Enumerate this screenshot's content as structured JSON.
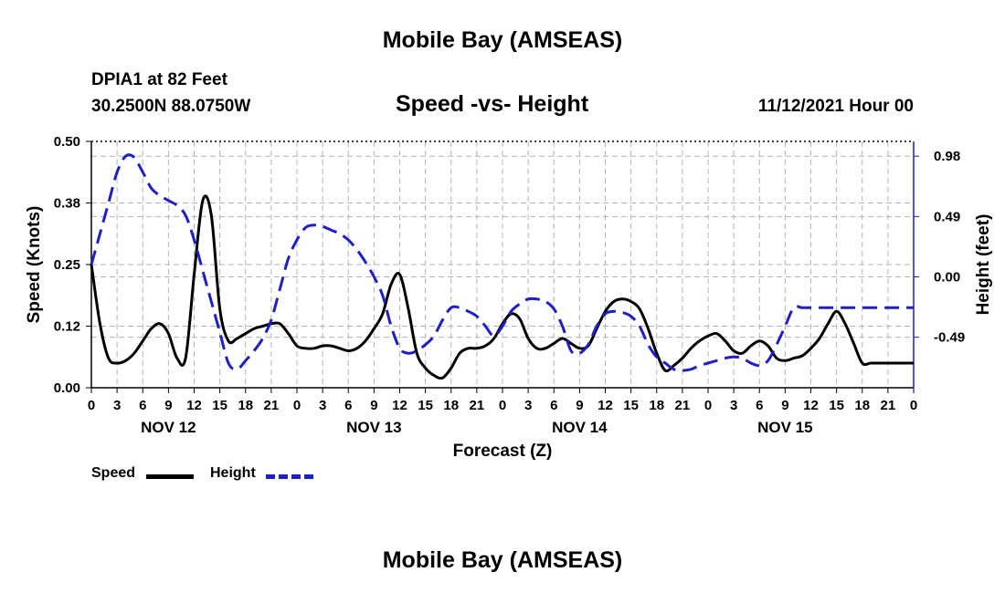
{
  "header": {
    "title": "Mobile Bay (AMSEAS)",
    "station": "DPIA1 at 82 Feet",
    "coords": "30.2500N  88.0750W",
    "chart_title": "Speed -vs- Height",
    "datetime": "11/12/2021 Hour 00"
  },
  "footer": {
    "title": "Mobile Bay (AMSEAS)"
  },
  "legend": {
    "speed_label": "Speed",
    "height_label": "Height"
  },
  "colors": {
    "speed": "#000000",
    "height": "#1f1fc8",
    "grid": "#b4b4b4"
  },
  "chart_data": {
    "type": "line",
    "title": "Speed -vs- Height",
    "xlabel": "Forecast (Z)",
    "ylabel_left": "Speed (Knots)",
    "ylabel_right": "Height (feet)",
    "xlim": [
      0,
      96
    ],
    "ylim_left": [
      0,
      0.5
    ],
    "ylim_right": [
      -0.9,
      1.1
    ],
    "x_tick_labels": [
      "0",
      "3",
      "6",
      "9",
      "12",
      "15",
      "18",
      "21",
      "0",
      "3",
      "6",
      "9",
      "12",
      "15",
      "18",
      "21",
      "0",
      "3",
      "6",
      "9",
      "12",
      "15",
      "18",
      "21",
      "0",
      "3",
      "6",
      "9",
      "12",
      "15",
      "18",
      "21",
      "0"
    ],
    "date_labels": [
      {
        "label": "NOV 12",
        "x": 9
      },
      {
        "label": "NOV 13",
        "x": 33
      },
      {
        "label": "NOV 14",
        "x": 57
      },
      {
        "label": "NOV 15",
        "x": 81
      }
    ],
    "left_ticks": [
      {
        "value": 0.0,
        "label": "0.00"
      },
      {
        "value": 0.125,
        "label": "0.12"
      },
      {
        "value": 0.25,
        "label": "0.25"
      },
      {
        "value": 0.375,
        "label": "0.38"
      },
      {
        "value": 0.5,
        "label": "0.50"
      }
    ],
    "right_ticks": [
      {
        "value": 0.98,
        "label": "0.98"
      },
      {
        "value": 0.49,
        "label": "0.49"
      },
      {
        "value": 0.0,
        "label": "0.00"
      },
      {
        "value": -0.49,
        "label": "-0.49"
      }
    ],
    "grid": true,
    "series": [
      {
        "name": "Speed",
        "axis": "left",
        "style": "solid",
        "x": [
          0,
          1,
          2,
          3,
          4,
          5,
          6,
          7,
          8,
          9,
          10,
          11,
          12,
          13,
          14,
          15,
          16,
          17,
          18,
          19,
          20,
          21,
          22,
          23,
          24,
          25,
          26,
          27,
          28,
          29,
          30,
          31,
          32,
          33,
          34,
          35,
          36,
          37,
          38,
          39,
          40,
          41,
          42,
          43,
          44,
          45,
          46,
          47,
          48,
          49,
          50,
          51,
          52,
          53,
          54,
          55,
          56,
          57,
          58,
          59,
          60,
          61,
          62,
          63,
          64,
          65,
          66,
          67,
          68,
          69,
          70,
          71,
          72,
          73,
          74,
          75,
          76,
          77,
          78,
          79,
          80,
          81,
          82,
          83,
          84,
          85,
          86,
          87,
          88,
          89,
          90,
          91,
          92,
          93,
          94,
          95,
          96
        ],
        "values": [
          0.25,
          0.13,
          0.06,
          0.05,
          0.055,
          0.07,
          0.095,
          0.12,
          0.13,
          0.11,
          0.06,
          0.06,
          0.23,
          0.38,
          0.35,
          0.16,
          0.095,
          0.1,
          0.11,
          0.12,
          0.125,
          0.13,
          0.13,
          0.11,
          0.085,
          0.08,
          0.08,
          0.085,
          0.085,
          0.08,
          0.075,
          0.08,
          0.095,
          0.12,
          0.15,
          0.21,
          0.23,
          0.16,
          0.07,
          0.04,
          0.025,
          0.02,
          0.04,
          0.07,
          0.08,
          0.08,
          0.085,
          0.1,
          0.13,
          0.15,
          0.14,
          0.1,
          0.08,
          0.08,
          0.09,
          0.1,
          0.09,
          0.08,
          0.085,
          0.12,
          0.155,
          0.175,
          0.18,
          0.175,
          0.16,
          0.12,
          0.07,
          0.035,
          0.045,
          0.06,
          0.08,
          0.095,
          0.105,
          0.11,
          0.095,
          0.075,
          0.07,
          0.085,
          0.095,
          0.085,
          0.06,
          0.055,
          0.06,
          0.065,
          0.08,
          0.1,
          0.13,
          0.155,
          0.13,
          0.09,
          0.05,
          0.05,
          0.05,
          0.05,
          0.05,
          0.05,
          0.05
        ]
      },
      {
        "name": "Height",
        "axis": "right",
        "style": "dashed",
        "x": [
          0,
          1,
          2,
          3,
          4,
          5,
          6,
          7,
          8,
          9,
          10,
          11,
          12,
          13,
          14,
          15,
          16,
          17,
          18,
          19,
          20,
          21,
          22,
          23,
          24,
          25,
          26,
          27,
          28,
          29,
          30,
          31,
          32,
          33,
          34,
          35,
          36,
          37,
          38,
          39,
          40,
          41,
          42,
          43,
          44,
          45,
          46,
          47,
          48,
          49,
          50,
          51,
          52,
          53,
          54,
          55,
          56,
          57,
          58,
          59,
          60,
          61,
          62,
          63,
          64,
          65,
          66,
          67,
          68,
          69,
          70,
          71,
          72,
          73,
          74,
          75,
          76,
          77,
          78,
          79,
          80,
          81,
          82,
          83,
          84,
          85,
          86,
          87,
          88,
          89,
          90,
          91,
          92,
          93,
          94,
          95,
          96
        ],
        "values": [
          0.1,
          0.35,
          0.6,
          0.85,
          0.98,
          0.97,
          0.85,
          0.72,
          0.66,
          0.62,
          0.58,
          0.5,
          0.3,
          0.05,
          -0.2,
          -0.45,
          -0.7,
          -0.75,
          -0.68,
          -0.6,
          -0.5,
          -0.35,
          -0.1,
          0.15,
          0.3,
          0.4,
          0.42,
          0.41,
          0.38,
          0.35,
          0.3,
          0.22,
          0.12,
          0.0,
          -0.15,
          -0.4,
          -0.58,
          -0.62,
          -0.6,
          -0.55,
          -0.48,
          -0.35,
          -0.25,
          -0.25,
          -0.28,
          -0.32,
          -0.4,
          -0.48,
          -0.4,
          -0.28,
          -0.22,
          -0.18,
          -0.18,
          -0.2,
          -0.26,
          -0.4,
          -0.6,
          -0.62,
          -0.55,
          -0.4,
          -0.3,
          -0.28,
          -0.29,
          -0.32,
          -0.4,
          -0.55,
          -0.65,
          -0.7,
          -0.75,
          -0.76,
          -0.75,
          -0.72,
          -0.7,
          -0.68,
          -0.66,
          -0.65,
          -0.66,
          -0.7,
          -0.72,
          -0.68,
          -0.55,
          -0.4,
          -0.25,
          -0.25,
          -0.25,
          -0.25,
          -0.25,
          -0.25,
          -0.25,
          -0.25,
          -0.25,
          -0.25,
          -0.25,
          -0.25,
          -0.25,
          -0.25,
          -0.25
        ]
      }
    ]
  }
}
